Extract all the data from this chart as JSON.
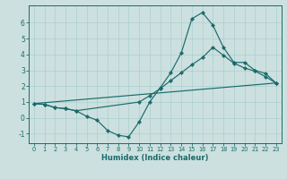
{
  "xlabel": "Humidex (Indice chaleur)",
  "bg_color": "#cce0df",
  "grid_color": "#aacfcf",
  "line_color": "#1a6b6b",
  "xlim": [
    -0.5,
    23.5
  ],
  "ylim": [
    -1.6,
    7.1
  ],
  "yticks": [
    -1,
    0,
    1,
    2,
    3,
    4,
    5,
    6
  ],
  "xticks": [
    0,
    1,
    2,
    3,
    4,
    5,
    6,
    7,
    8,
    9,
    10,
    11,
    12,
    13,
    14,
    15,
    16,
    17,
    18,
    19,
    20,
    21,
    22,
    23
  ],
  "line1_x": [
    0,
    1,
    2,
    3,
    4,
    5,
    6,
    7,
    8,
    9,
    10,
    11,
    12,
    13,
    14,
    15,
    16,
    17,
    18,
    19,
    20,
    21,
    22,
    23
  ],
  "line1_y": [
    0.9,
    0.85,
    0.65,
    0.58,
    0.45,
    0.1,
    -0.15,
    -0.8,
    -1.1,
    -1.2,
    -0.25,
    1.0,
    1.9,
    2.85,
    4.1,
    6.25,
    6.65,
    5.85,
    4.45,
    3.5,
    3.5,
    3.0,
    2.8,
    2.2
  ],
  "line2_x": [
    0,
    1,
    2,
    3,
    4,
    10,
    11,
    12,
    13,
    14,
    15,
    16,
    17,
    18,
    19,
    20,
    21,
    22,
    23
  ],
  "line2_y": [
    0.9,
    0.85,
    0.65,
    0.58,
    0.45,
    1.0,
    1.4,
    1.85,
    2.35,
    2.85,
    3.35,
    3.8,
    4.45,
    3.95,
    3.45,
    3.15,
    2.95,
    2.6,
    2.2
  ],
  "line3_x": [
    0,
    23
  ],
  "line3_y": [
    0.9,
    2.2
  ]
}
